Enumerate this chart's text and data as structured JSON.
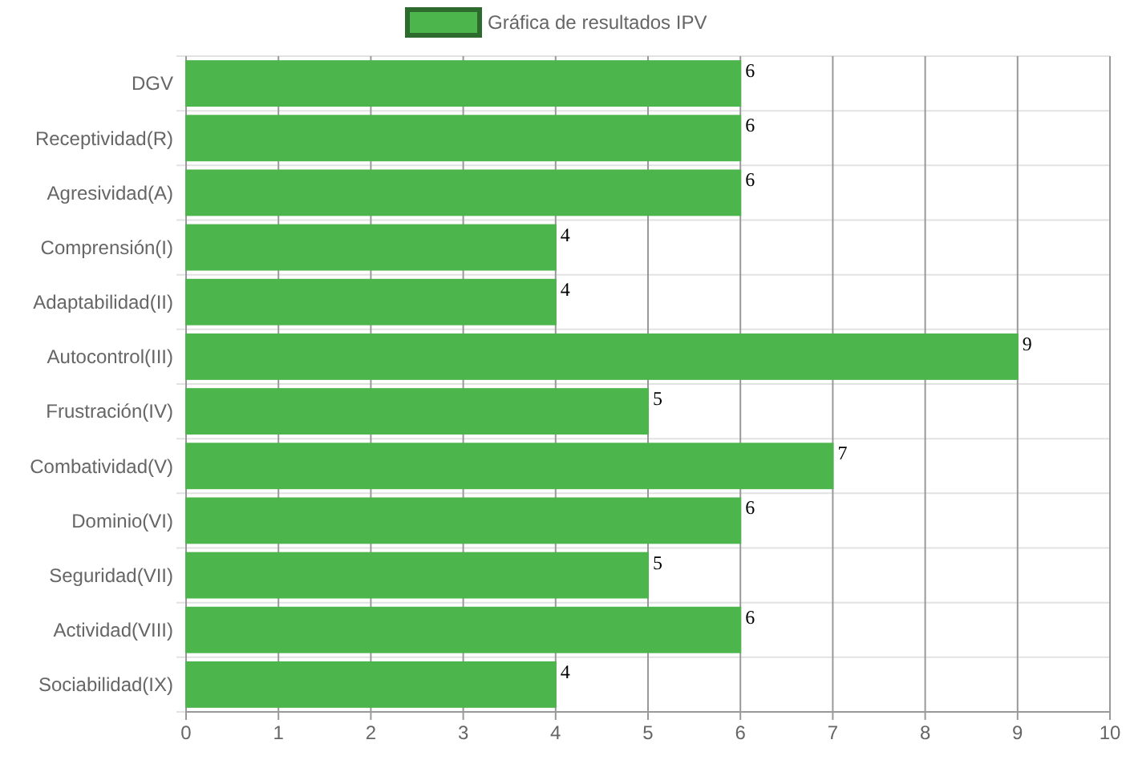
{
  "chart_data": {
    "type": "bar",
    "orientation": "horizontal",
    "categories": [
      "DGV",
      "Receptividad(R)",
      "Agresividad(A)",
      "Comprensión(I)",
      "Adaptabilidad(II)",
      "Autocontrol(III)",
      "Frustración(IV)",
      "Combatividad(V)",
      "Dominio(VI)",
      "Seguridad(VII)",
      "Actividad(VIII)",
      "Sociabilidad(IX)"
    ],
    "series": [
      {
        "name": "Gráfica de resultados IPV",
        "color": "#4cb54c",
        "values": [
          6,
          6,
          6,
          4,
          4,
          9,
          5,
          7,
          6,
          5,
          6,
          4
        ]
      }
    ],
    "xlim": [
      0,
      10
    ],
    "xticks": [
      0,
      1,
      2,
      3,
      4,
      5,
      6,
      7,
      8,
      9,
      10
    ],
    "grid": true,
    "legend": "top",
    "data_labels": true
  }
}
